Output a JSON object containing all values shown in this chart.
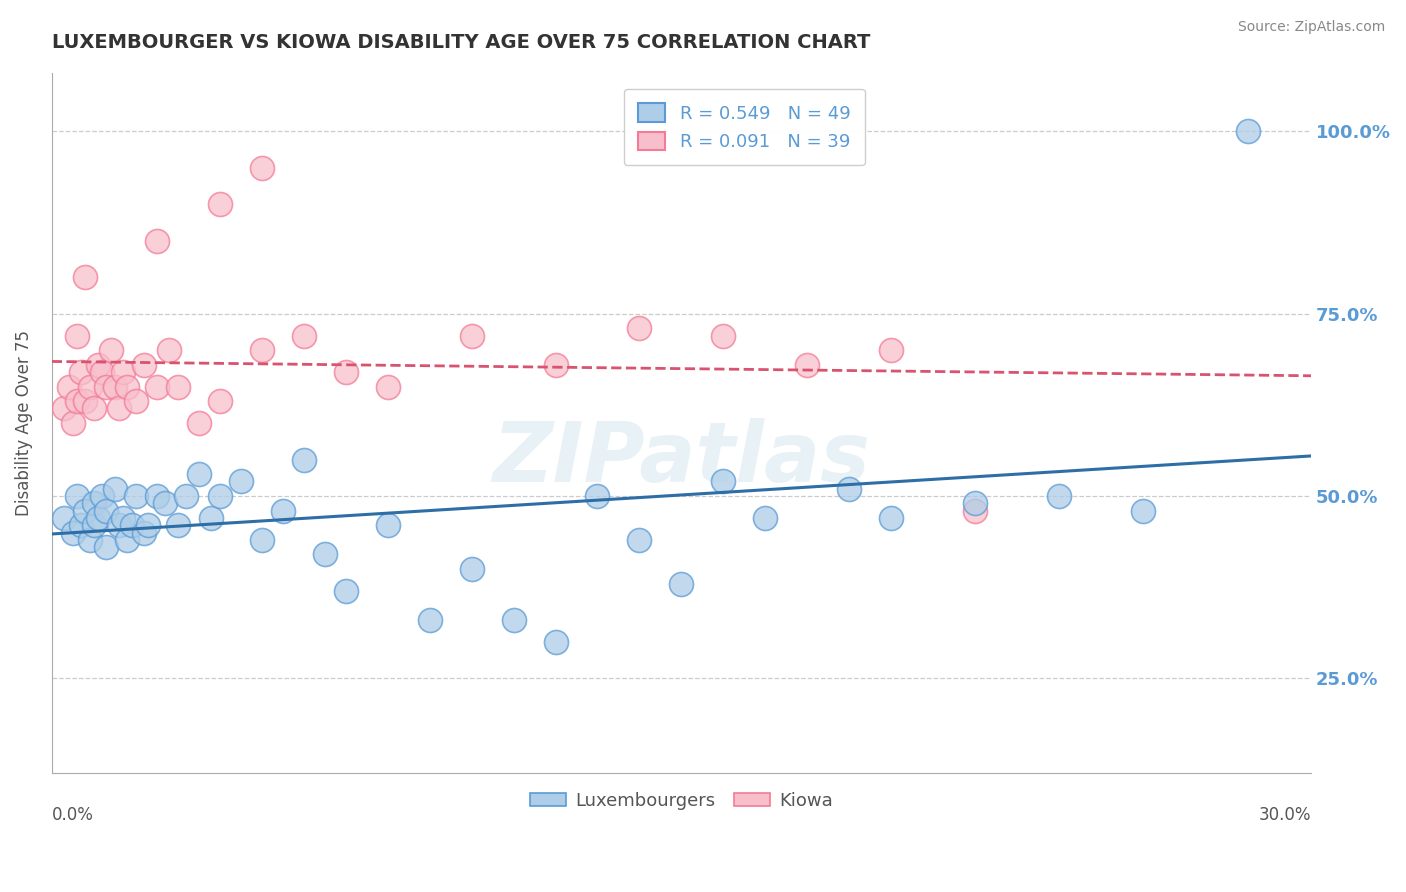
{
  "title": "LUXEMBOURGER VS KIOWA DISABILITY AGE OVER 75 CORRELATION CHART",
  "source": "Source: ZipAtlas.com",
  "ylabel": "Disability Age Over 75",
  "xlim": [
    0.0,
    0.3
  ],
  "ylim": [
    0.12,
    1.08
  ],
  "yticks": [
    0.25,
    0.5,
    0.75,
    1.0
  ],
  "ytick_labels": [
    "25.0%",
    "50.0%",
    "75.0%",
    "100.0%"
  ],
  "watermark": "ZIPatlas",
  "legend_labels": [
    "Luxembourgers",
    "Kiowa"
  ],
  "blue_color": "#5b9bd5",
  "pink_color": "#f47a96",
  "blue_fill": "#aecde8",
  "pink_fill": "#f7bfcc",
  "line_blue": "#2e6ea6",
  "line_pink": "#d9536f",
  "blue_R": 0.549,
  "pink_R": 0.091,
  "blue_N": 49,
  "pink_N": 39,
  "blue_scatter_x": [
    0.003,
    0.005,
    0.006,
    0.007,
    0.008,
    0.009,
    0.01,
    0.01,
    0.011,
    0.012,
    0.013,
    0.013,
    0.015,
    0.016,
    0.017,
    0.018,
    0.019,
    0.02,
    0.022,
    0.023,
    0.025,
    0.027,
    0.03,
    0.032,
    0.035,
    0.038,
    0.04,
    0.045,
    0.05,
    0.055,
    0.06,
    0.065,
    0.07,
    0.08,
    0.09,
    0.1,
    0.11,
    0.12,
    0.13,
    0.14,
    0.15,
    0.16,
    0.17,
    0.19,
    0.2,
    0.22,
    0.24,
    0.26,
    0.285
  ],
  "blue_scatter_y": [
    0.47,
    0.45,
    0.5,
    0.46,
    0.48,
    0.44,
    0.46,
    0.49,
    0.47,
    0.5,
    0.48,
    0.43,
    0.51,
    0.46,
    0.47,
    0.44,
    0.46,
    0.5,
    0.45,
    0.46,
    0.5,
    0.49,
    0.46,
    0.5,
    0.53,
    0.47,
    0.5,
    0.52,
    0.44,
    0.48,
    0.55,
    0.42,
    0.37,
    0.46,
    0.33,
    0.4,
    0.33,
    0.3,
    0.5,
    0.44,
    0.38,
    0.52,
    0.47,
    0.51,
    0.47,
    0.49,
    0.5,
    0.48,
    1.0
  ],
  "pink_scatter_x": [
    0.003,
    0.004,
    0.005,
    0.006,
    0.007,
    0.008,
    0.009,
    0.01,
    0.011,
    0.012,
    0.013,
    0.014,
    0.015,
    0.016,
    0.017,
    0.018,
    0.02,
    0.022,
    0.025,
    0.028,
    0.03,
    0.035,
    0.04,
    0.05,
    0.06,
    0.07,
    0.08,
    0.1,
    0.12,
    0.14,
    0.16,
    0.18,
    0.2,
    0.04,
    0.05,
    0.025,
    0.008,
    0.006,
    0.22
  ],
  "pink_scatter_y": [
    0.62,
    0.65,
    0.6,
    0.63,
    0.67,
    0.63,
    0.65,
    0.62,
    0.68,
    0.67,
    0.65,
    0.7,
    0.65,
    0.62,
    0.67,
    0.65,
    0.63,
    0.68,
    0.65,
    0.7,
    0.65,
    0.6,
    0.63,
    0.7,
    0.72,
    0.67,
    0.65,
    0.72,
    0.68,
    0.73,
    0.72,
    0.68,
    0.7,
    0.9,
    0.95,
    0.85,
    0.8,
    0.72,
    0.48
  ]
}
